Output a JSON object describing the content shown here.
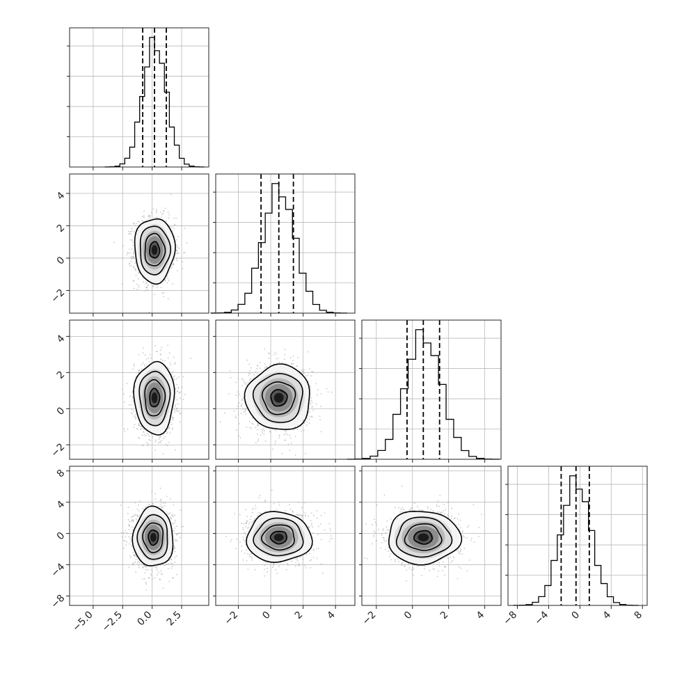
{
  "chart_data": {
    "type": "corner",
    "grid": true,
    "n_params": 4,
    "ranges": [
      [
        -7,
        4.8
      ],
      [
        -3.4,
        5.2
      ],
      [
        -2.8,
        4.9
      ],
      [
        -9.2,
        8.6
      ]
    ],
    "ticks": [
      {
        "values": [
          -5.0,
          -2.5,
          0.0,
          2.5
        ],
        "labels": [
          "−5.0",
          "−2.5",
          "0.0",
          "2.5"
        ]
      },
      {
        "values": [
          -2,
          0,
          2,
          4
        ],
        "labels": [
          "−2",
          "0",
          "2",
          "4"
        ]
      },
      {
        "values": [
          -2,
          0,
          2,
          4
        ],
        "labels": [
          "−2",
          "0",
          "2",
          "4"
        ]
      },
      {
        "values": [
          -8,
          -4,
          0,
          4,
          8
        ],
        "labels": [
          "−8",
          "−4",
          "0",
          "4",
          "8"
        ]
      }
    ],
    "histograms": [
      {
        "param": 0,
        "mean": 0.2,
        "sd": 1.0,
        "quantiles": [
          -0.8,
          0.2,
          1.2
        ]
      },
      {
        "param": 1,
        "mean": 0.5,
        "sd": 1.0,
        "quantiles": [
          -0.6,
          0.5,
          1.4
        ]
      },
      {
        "param": 2,
        "mean": 0.6,
        "sd": 1.0,
        "quantiles": [
          -0.3,
          0.6,
          1.5
        ]
      },
      {
        "param": 3,
        "mean": -0.5,
        "sd": 1.9,
        "quantiles": [
          -2.4,
          -0.5,
          1.2
        ]
      }
    ],
    "pairs": [
      {
        "x_param": 0,
        "y_param": 1,
        "cx": 0.2,
        "cy": 0.5,
        "sx": 0.85,
        "sy": 1.0
      },
      {
        "x_param": 0,
        "y_param": 2,
        "cx": 0.2,
        "cy": 0.6,
        "sx": 0.85,
        "sy": 1.0
      },
      {
        "x_param": 1,
        "y_param": 2,
        "cx": 0.5,
        "cy": 0.6,
        "sx": 1.0,
        "sy": 0.9
      },
      {
        "x_param": 0,
        "y_param": 3,
        "cx": 0.1,
        "cy": -0.5,
        "sx": 0.85,
        "sy": 1.9
      },
      {
        "x_param": 1,
        "y_param": 3,
        "cx": 0.5,
        "cy": -0.5,
        "sx": 1.0,
        "sy": 1.6
      },
      {
        "x_param": 2,
        "y_param": 3,
        "cx": 0.6,
        "cy": -0.5,
        "sx": 1.0,
        "sy": 1.7
      }
    ],
    "contour_levels_sigma": [
      0.5,
      1.0,
      1.5,
      2.0
    ],
    "colors": {
      "lines": "#000000",
      "grid": "#b8b8b8",
      "points": "#9a9a9a",
      "density_dark": "#000000"
    }
  }
}
